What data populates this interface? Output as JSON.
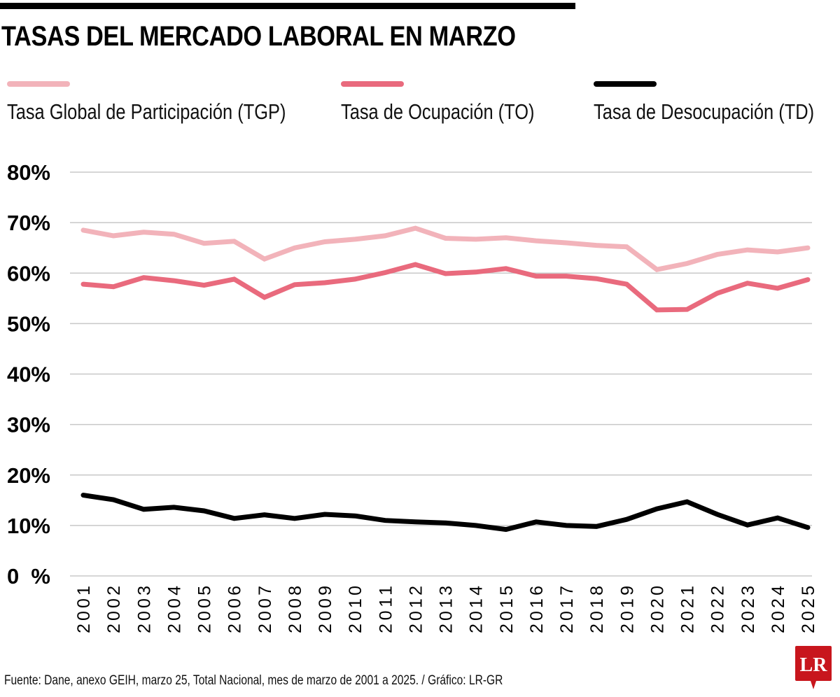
{
  "chart_data": {
    "type": "line",
    "title": "TASAS DEL MERCADO LABORAL EN MARZO",
    "x": [
      2001,
      2002,
      2003,
      2004,
      2005,
      2006,
      2007,
      2008,
      2009,
      2010,
      2011,
      2012,
      2013,
      2014,
      2015,
      2016,
      2017,
      2018,
      2019,
      2020,
      2021,
      2022,
      2023,
      2024,
      2025
    ],
    "series": [
      {
        "name": "Tasa Global de Participación (TGP)",
        "color": "#f2b3ba",
        "values": [
          68.5,
          67.4,
          68.1,
          67.7,
          65.9,
          66.3,
          62.8,
          65.0,
          66.2,
          66.7,
          67.4,
          68.9,
          66.9,
          66.7,
          67.0,
          66.4,
          66.0,
          65.5,
          65.2,
          60.7,
          61.9,
          63.7,
          64.6,
          64.2,
          65.0
        ]
      },
      {
        "name": "Tasa de Ocupación (TO)",
        "color": "#e96a7d",
        "values": [
          57.8,
          57.3,
          59.1,
          58.5,
          57.6,
          58.8,
          55.2,
          57.7,
          58.1,
          58.8,
          60.1,
          61.7,
          59.9,
          60.2,
          60.9,
          59.4,
          59.4,
          58.9,
          57.8,
          52.7,
          52.8,
          56.0,
          58.0,
          57.0,
          58.7
        ]
      },
      {
        "name": "Tasa de Desocupación (TD)",
        "color": "#000000",
        "values": [
          16.0,
          15.1,
          13.2,
          13.6,
          12.9,
          11.4,
          12.1,
          11.4,
          12.2,
          11.9,
          11.0,
          10.7,
          10.5,
          10.0,
          9.2,
          10.7,
          10.0,
          9.8,
          11.2,
          13.3,
          14.7,
          12.2,
          10.1,
          11.5,
          9.6
        ]
      }
    ],
    "ylim": [
      0,
      80
    ],
    "yticks": [
      0,
      10,
      20,
      30,
      40,
      50,
      60,
      70,
      80
    ],
    "ytick_labels": [
      "0%",
      "10%",
      "20%",
      "30%",
      "40%",
      "50%",
      "60%",
      "70%",
      "80%"
    ],
    "grid": "horizontal",
    "legend_placement": "top",
    "source": "Fuente: Dane, anexo GEIH, marzo 25, Total Nacional, mes de marzo de 2001 a 2025. / Gráfico: LR-GR",
    "logo_text": "LR",
    "logo_color": "#c8161d"
  }
}
